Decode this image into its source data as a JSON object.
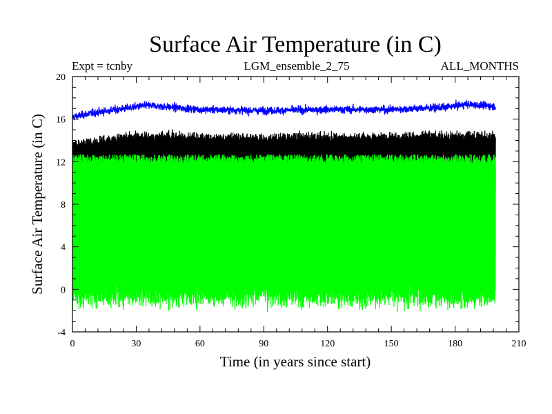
{
  "chart_data": {
    "type": "line",
    "title": "Surface Air Temperature (in C)",
    "subtitle_left": "Expt = tcnby",
    "subtitle_center": "LGM_ensemble_2_75",
    "subtitle_right": "ALL_MONTHS",
    "xlabel": "Time (in years since start)",
    "ylabel": "Surface Air Temperature (in C)",
    "xlim": [
      0,
      210
    ],
    "ylim": [
      -4,
      20
    ],
    "xticks": [
      0,
      30,
      60,
      90,
      120,
      150,
      180,
      210
    ],
    "yticks": [
      -4,
      0,
      4,
      8,
      12,
      16,
      20
    ],
    "x_data_range": [
      0,
      199
    ],
    "grid": false,
    "series": [
      {
        "name": "blue series",
        "color": "#0000ff",
        "description": "monthly values, mean ~16.9, range ~15.8-18.0",
        "annual_mean_approx": 16.9,
        "min_approx": 15.8,
        "max_approx": 18.0,
        "keypoints": [
          [
            0,
            16.2
          ],
          [
            10,
            16.6
          ],
          [
            35,
            17.3
          ],
          [
            60,
            16.9
          ],
          [
            90,
            16.8
          ],
          [
            120,
            16.9
          ],
          [
            150,
            16.9
          ],
          [
            175,
            17.1
          ],
          [
            185,
            17.4
          ],
          [
            199,
            17.2
          ]
        ]
      },
      {
        "name": "black series",
        "color": "#000000",
        "description": "monthly values, seasonal range ~9.5-15",
        "annual_min_approx": 11.5,
        "annual_max_approx": 14.5,
        "keypoints": [
          [
            0,
            12.5
          ],
          [
            30,
            13.3
          ],
          [
            60,
            13.2
          ],
          [
            90,
            13.1
          ],
          [
            120,
            13.2
          ],
          [
            150,
            13.2
          ],
          [
            180,
            13.3
          ],
          [
            199,
            13.3
          ]
        ]
      },
      {
        "name": "green series",
        "color": "#00ff00",
        "description": "monthly values, seasonal range ~-2 to 13",
        "annual_min_approx": -1.0,
        "annual_max_approx": 12.5,
        "keypoints": [
          [
            0,
            5.0
          ],
          [
            30,
            5.5
          ],
          [
            60,
            5.6
          ],
          [
            90,
            5.5
          ],
          [
            120,
            5.6
          ],
          [
            150,
            5.5
          ],
          [
            180,
            5.6
          ],
          [
            199,
            5.5
          ]
        ]
      }
    ]
  }
}
